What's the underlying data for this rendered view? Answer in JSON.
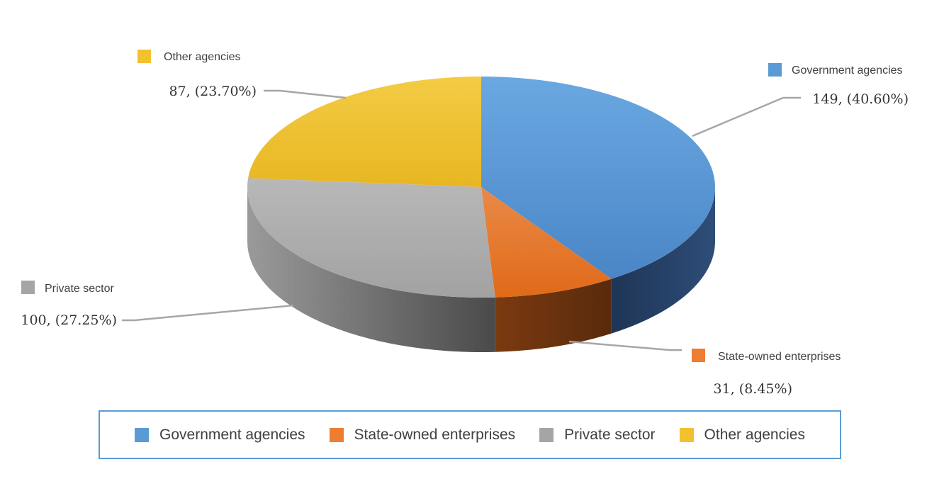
{
  "chart_data": {
    "type": "pie",
    "three_d": true,
    "categories": [
      "Government agencies",
      "State-owned enterprises",
      "Private sector",
      "Other agencies"
    ],
    "values": [
      149,
      31,
      100,
      87
    ],
    "percent_labels": [
      "(40.60%)",
      "(8.45%)",
      "(27.25%)",
      "(23.70%)"
    ],
    "colors": [
      "#5b9bd5",
      "#ed7d31",
      "#a5a5a5",
      "#f2c12e"
    ],
    "legend_position": "bottom",
    "data_labels": "callouts with leader lines"
  },
  "legend": {
    "items": [
      {
        "label": "Government agencies",
        "color": "#5b9bd5"
      },
      {
        "label": "State-owned enterprises",
        "color": "#ed7d31"
      },
      {
        "label": "Private sector",
        "color": "#a5a5a5"
      },
      {
        "label": "Other agencies",
        "color": "#f2c12e"
      }
    ]
  }
}
